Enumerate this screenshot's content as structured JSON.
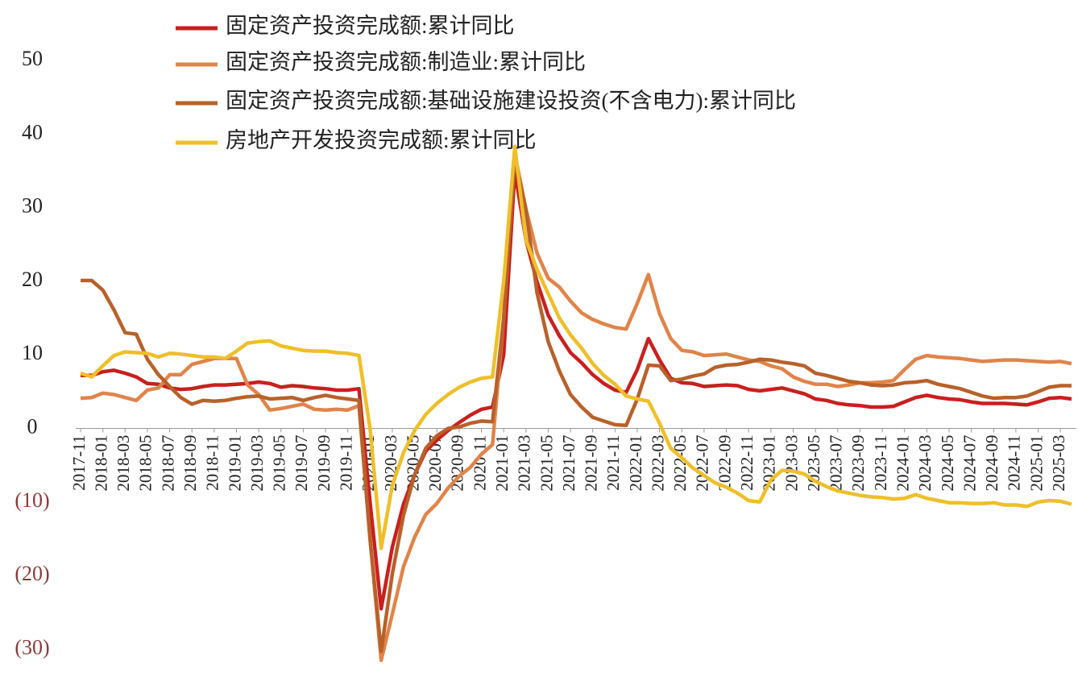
{
  "chart_data": {
    "type": "line",
    "legend": "top-left",
    "grid": false,
    "ylim": [
      -35,
      50
    ],
    "yticks": [
      {
        "value": -30,
        "label": "(30)"
      },
      {
        "value": -20,
        "label": "(20)"
      },
      {
        "value": -10,
        "label": "(10)"
      },
      0,
      10,
      20,
      30,
      40,
      50
    ],
    "negative_tick_color": "#8b3a3a",
    "categories": [
      "2017-11",
      null,
      "2018-01",
      null,
      "2018-03",
      null,
      "2018-05",
      null,
      "2018-07",
      null,
      "2018-09",
      null,
      "2018-11",
      null,
      "2019-01",
      null,
      "2019-03",
      null,
      "2019-05",
      null,
      "2019-07",
      null,
      "2019-09",
      null,
      "2019-11",
      null,
      "2020-01",
      null,
      "2020-03",
      null,
      "2020-05",
      null,
      "2020-07",
      null,
      "2020-09",
      null,
      "2020-11",
      null,
      "2021-01",
      null,
      "2021-03",
      null,
      "2021-05",
      null,
      "2021-07",
      null,
      "2021-09",
      null,
      "2021-11",
      null,
      "2022-01",
      null,
      "2022-03",
      null,
      "2022-05",
      null,
      "2022-07",
      null,
      "2022-09",
      null,
      "2022-11",
      null,
      "2023-01",
      null,
      "2023-03",
      null,
      "2023-05",
      null,
      "2023-07",
      null,
      "2023-09",
      null,
      "2023-11",
      null,
      "2024-01",
      null,
      "2024-03",
      null,
      "2024-05",
      null,
      "2024-07",
      null,
      "2024-09",
      null,
      "2024-11",
      null,
      "2025-01",
      null,
      "2025-03",
      null
    ],
    "series": [
      {
        "name": "固定资产投资完成额:累计同比",
        "color": "#c8201e",
        "values": [
          7.2,
          7.2,
          7.7,
          7.9,
          7.5,
          7.0,
          6.1,
          6.0,
          5.5,
          5.3,
          5.4,
          5.7,
          5.9,
          5.9,
          6.0,
          6.1,
          6.3,
          6.1,
          5.6,
          5.8,
          5.7,
          5.5,
          5.4,
          5.2,
          5.2,
          5.4,
          -10,
          -24.5,
          -16.1,
          -10.3,
          -6.3,
          -3.1,
          -1.6,
          -0.3,
          0.8,
          1.8,
          2.6,
          2.9,
          10,
          35.0,
          25.6,
          19.9,
          15.4,
          12.6,
          10.3,
          8.9,
          7.3,
          6.1,
          5.2,
          4.9,
          8,
          12.2,
          9.3,
          6.8,
          6.2,
          6.1,
          5.7,
          5.8,
          5.9,
          5.8,
          5.3,
          5.1,
          5.3,
          5.5,
          5.1,
          4.7,
          4.0,
          3.8,
          3.4,
          3.2,
          3.1,
          2.9,
          2.9,
          3.0,
          3.6,
          4.2,
          4.5,
          4.2,
          4.0,
          3.9,
          3.6,
          3.4,
          3.4,
          3.4,
          3.3,
          3.2,
          3.6,
          4.1,
          4.2,
          4.0
        ]
      },
      {
        "name": "固定资产投资完成额:制造业:累计同比",
        "color": "#e0844a",
        "values": [
          4.1,
          4.2,
          4.8,
          4.6,
          4.2,
          3.8,
          5.2,
          5.5,
          7.3,
          7.3,
          8.7,
          9.1,
          9.5,
          9.5,
          9.5,
          5.9,
          4.6,
          2.5,
          2.7,
          3.0,
          3.3,
          2.6,
          2.5,
          2.6,
          2.5,
          3.1,
          -15,
          -31.5,
          -25.2,
          -18.8,
          -14.8,
          -11.7,
          -10.2,
          -8.1,
          -6.5,
          -5.3,
          -3.5,
          -2.2,
          15,
          37.3,
          29.8,
          23.8,
          20.4,
          19.2,
          17.3,
          15.7,
          14.8,
          14.2,
          13.7,
          13.5,
          17,
          20.9,
          15.6,
          12.2,
          10.6,
          10.4,
          9.9,
          10.0,
          10.1,
          9.7,
          9.3,
          9.1,
          8.5,
          8.1,
          7.0,
          6.4,
          6.0,
          6.0,
          5.7,
          5.9,
          6.2,
          6.2,
          6.3,
          6.5,
          8,
          9.4,
          9.9,
          9.7,
          9.6,
          9.5,
          9.3,
          9.1,
          9.2,
          9.3,
          9.3,
          9.2,
          9.1,
          9.0,
          9.1,
          8.8
        ]
      },
      {
        "name": "固定资产投资完成额:基础设施建设投资(不含电力):累计同比",
        "color": "#b8612a",
        "values": [
          20.1,
          20.1,
          18.8,
          16.1,
          13.0,
          12.8,
          9.4,
          7.3,
          5.7,
          4.2,
          3.3,
          3.8,
          3.7,
          3.8,
          4.1,
          4.3,
          4.4,
          4.0,
          4.1,
          4.2,
          3.8,
          4.2,
          4.5,
          4.2,
          4.0,
          3.8,
          -15,
          -30.3,
          -19.7,
          -11.8,
          -6.3,
          -2.7,
          -1.0,
          0.0,
          0.2,
          0.7,
          1.0,
          0.9,
          15,
          36.6,
          29.7,
          18.4,
          11.8,
          7.8,
          4.6,
          2.9,
          1.5,
          1.0,
          0.5,
          0.4,
          4,
          8.6,
          8.5,
          6.5,
          6.7,
          7.1,
          7.4,
          8.3,
          8.6,
          8.7,
          9.0,
          9.4,
          9.3,
          9.0,
          8.8,
          8.5,
          7.5,
          7.2,
          6.8,
          6.4,
          6.2,
          5.9,
          5.8,
          5.9,
          6.2,
          6.3,
          6.5,
          6.0,
          5.7,
          5.4,
          4.9,
          4.4,
          4.1,
          4.2,
          4.2,
          4.4,
          5.0,
          5.6,
          5.8,
          5.8
        ]
      },
      {
        "name": "房地产开发投资完成额:累计同比",
        "color": "#eebf2a",
        "values": [
          7.5,
          7.0,
          8.5,
          9.9,
          10.4,
          10.3,
          10.2,
          9.7,
          10.2,
          10.1,
          9.9,
          9.7,
          9.7,
          9.5,
          10.5,
          11.6,
          11.8,
          11.9,
          11.2,
          10.9,
          10.6,
          10.5,
          10.5,
          10.3,
          10.2,
          9.9,
          0,
          -16.3,
          -7.7,
          -3.3,
          -0.3,
          1.9,
          3.4,
          4.6,
          5.6,
          6.3,
          6.8,
          7.0,
          20,
          38.3,
          25.6,
          21.6,
          18.3,
          15.0,
          12.7,
          10.9,
          8.8,
          7.2,
          6.0,
          4.4,
          4,
          3.7,
          0.7,
          -2.7,
          -4.0,
          -5.4,
          -6.4,
          -7.4,
          -8.0,
          -8.8,
          -9.8,
          -10.0,
          -7,
          -5.7,
          -5.8,
          -6.2,
          -7.2,
          -7.9,
          -8.5,
          -8.8,
          -9.1,
          -9.3,
          -9.4,
          -9.6,
          -9.5,
          -9.0,
          -9.5,
          -9.8,
          -10.1,
          -10.1,
          -10.2,
          -10.2,
          -10.1,
          -10.4,
          -10.4,
          -10.6,
          -10.0,
          -9.8,
          -9.9,
          -10.3
        ]
      }
    ]
  }
}
